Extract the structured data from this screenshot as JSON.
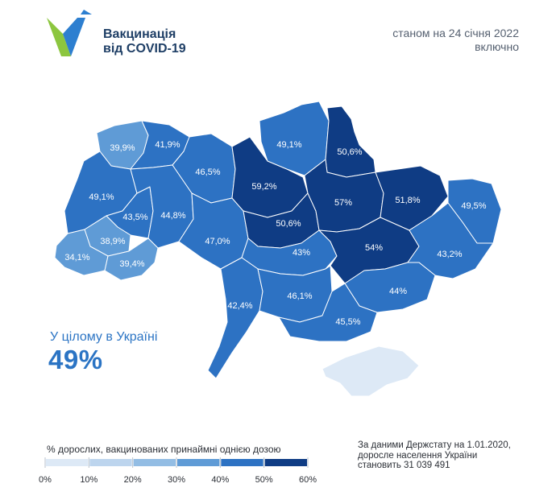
{
  "brand": {
    "logo_icon": "v-check-logo-icon",
    "line1": "Вакцинація",
    "line2": "від COVID-19",
    "colors": {
      "green": "#8cc63f",
      "blue": "#2d7fd0",
      "navy": "#1f3f66"
    }
  },
  "date": {
    "line1": "станом на 24 січня 2022",
    "line2": "включно"
  },
  "summary": {
    "label": "У цілому в Україні",
    "value": "49%"
  },
  "legend": {
    "title": "% дорослих, вакцинованих принаймні однією дозою",
    "ticks": [
      "0%",
      "10%",
      "20%",
      "30%",
      "40%",
      "50%",
      "60%"
    ],
    "colors": [
      "#dde9f6",
      "#bdd5ee",
      "#93bde4",
      "#5f9bd6",
      "#2d72c3",
      "#0f3c84"
    ]
  },
  "source": {
    "line1": "За даними Держстату на 1.01.2020,",
    "line2": "доросле населення України",
    "line3": "становить 31 039 491"
  },
  "regions": [
    {
      "label": "39,9%",
      "value": 39.9
    },
    {
      "label": "41,9%",
      "value": 41.9
    },
    {
      "label": "49,1%",
      "value": 49.1
    },
    {
      "label": "46,5%",
      "value": 46.5
    },
    {
      "label": "43,5%",
      "value": 43.5
    },
    {
      "label": "44,8%",
      "value": 44.8
    },
    {
      "label": "38,9%",
      "value": 38.9
    },
    {
      "label": "34,1%",
      "value": 34.1
    },
    {
      "label": "39,4%",
      "value": 39.4
    },
    {
      "label": "47,0%",
      "value": 47.0
    },
    {
      "label": "59,2%",
      "value": 59.2
    },
    {
      "label": "49,1%",
      "value": 49.1
    },
    {
      "label": "50,6%",
      "value": 50.6
    },
    {
      "label": "50,6%",
      "value": 50.6
    },
    {
      "label": "57%",
      "value": 57
    },
    {
      "label": "51,8%",
      "value": 51.8
    },
    {
      "label": "49,5%",
      "value": 49.5
    },
    {
      "label": "43%",
      "value": 43
    },
    {
      "label": "54%",
      "value": 54
    },
    {
      "label": "43,2%",
      "value": 43.2
    },
    {
      "label": "42,4%",
      "value": 42.4
    },
    {
      "label": "46,1%",
      "value": 46.1
    },
    {
      "label": "44%",
      "value": 44
    },
    {
      "label": "45,5%",
      "value": 45.5
    },
    {
      "label": "",
      "value": null
    }
  ]
}
